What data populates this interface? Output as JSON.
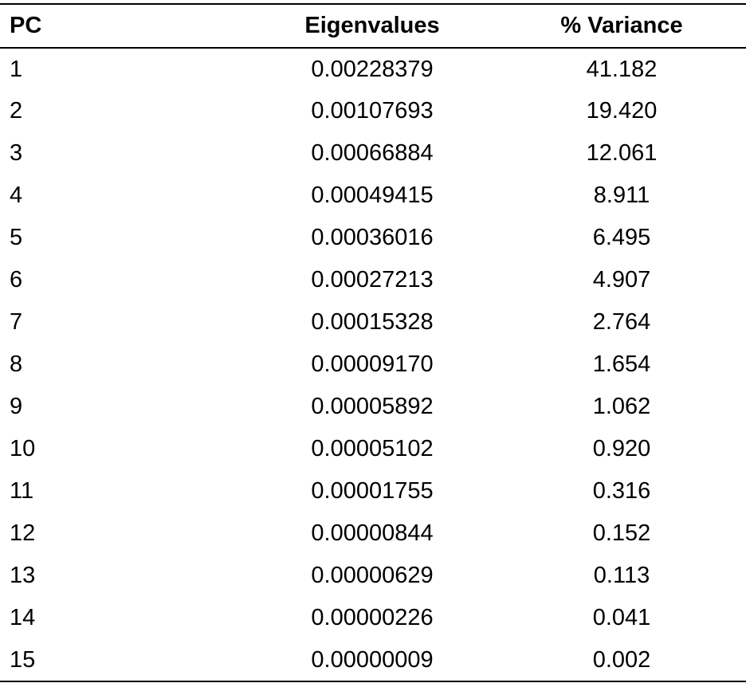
{
  "table": {
    "headers": {
      "pc": "PC",
      "eigenvalues": "Eigenvalues",
      "variance": "% Variance"
    },
    "rows": [
      {
        "pc": "1",
        "eigenvalue": "0.00228379",
        "variance": "41.182"
      },
      {
        "pc": "2",
        "eigenvalue": "0.00107693",
        "variance": "19.420"
      },
      {
        "pc": "3",
        "eigenvalue": "0.00066884",
        "variance": "12.061"
      },
      {
        "pc": "4",
        "eigenvalue": "0.00049415",
        "variance": "8.911"
      },
      {
        "pc": "5",
        "eigenvalue": "0.00036016",
        "variance": "6.495"
      },
      {
        "pc": "6",
        "eigenvalue": "0.00027213",
        "variance": "4.907"
      },
      {
        "pc": "7",
        "eigenvalue": "0.00015328",
        "variance": "2.764"
      },
      {
        "pc": "8",
        "eigenvalue": "0.00009170",
        "variance": "1.654"
      },
      {
        "pc": "9",
        "eigenvalue": "0.00005892",
        "variance": "1.062"
      },
      {
        "pc": "10",
        "eigenvalue": "0.00005102",
        "variance": "0.920"
      },
      {
        "pc": "11",
        "eigenvalue": "0.00001755",
        "variance": "0.316"
      },
      {
        "pc": "12",
        "eigenvalue": "0.00000844",
        "variance": "0.152"
      },
      {
        "pc": "13",
        "eigenvalue": "0.00000629",
        "variance": "0.113"
      },
      {
        "pc": "14",
        "eigenvalue": "0.00000226",
        "variance": "0.041"
      },
      {
        "pc": "15",
        "eigenvalue": "0.00000009",
        "variance": "0.002"
      }
    ]
  }
}
